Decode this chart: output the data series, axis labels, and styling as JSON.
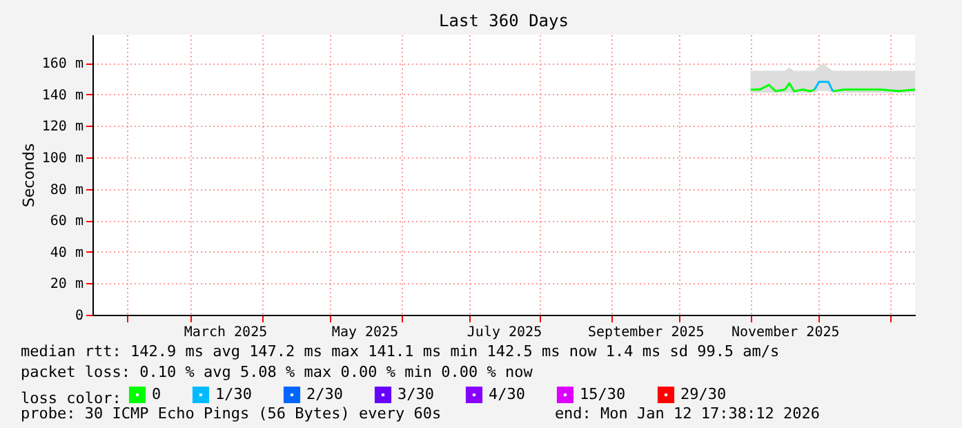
{
  "chart_data": {
    "type": "line",
    "title": "Last 360 Days",
    "ylabel": "Seconds",
    "legend_title": "loss color:",
    "legend": "bottom",
    "grid": true,
    "x": [
      "2025-11-01",
      "2025-11-05",
      "2025-11-09",
      "2025-11-12",
      "2025-11-16",
      "2025-11-18",
      "2025-11-20",
      "2025-11-24",
      "2025-11-27",
      "2025-11-29",
      "2025-12-01",
      "2025-12-03",
      "2025-12-05",
      "2025-12-07",
      "2025-12-12",
      "2025-12-20",
      "2025-12-28",
      "2026-01-05",
      "2026-01-12"
    ],
    "series": [
      {
        "name": "0",
        "color": "#00ff00",
        "values": [
          143,
          143,
          146,
          142,
          143,
          147,
          142,
          143,
          142,
          143,
          null,
          null,
          null,
          142,
          143,
          143,
          143,
          142,
          143
        ],
        "lower": [
          141,
          141,
          141,
          141,
          141,
          141,
          141,
          141,
          141,
          141,
          142,
          142,
          142,
          141,
          141,
          141,
          141,
          141,
          141
        ],
        "upper": [
          155,
          155,
          155,
          155,
          155,
          157,
          155,
          155,
          155,
          155,
          158,
          160,
          157,
          155,
          155,
          155,
          155,
          155,
          155
        ]
      },
      {
        "name": "1/30",
        "color": "#00bbff",
        "values": [
          null,
          null,
          null,
          null,
          null,
          null,
          null,
          null,
          null,
          143,
          148,
          148,
          148,
          142,
          null,
          null,
          null,
          null,
          null
        ]
      },
      {
        "name": "2/30",
        "color": "#0066ff",
        "values": [
          null,
          null,
          null,
          null,
          null,
          null,
          null,
          null,
          null,
          null,
          null,
          null,
          null,
          null,
          null,
          null,
          null,
          null,
          null
        ]
      },
      {
        "name": "3/30",
        "color": "#6600ff",
        "values": [
          null,
          null,
          null,
          null,
          null,
          null,
          null,
          null,
          null,
          null,
          null,
          null,
          null,
          null,
          null,
          null,
          null,
          null,
          null
        ]
      },
      {
        "name": "4/30",
        "color": "#8800ff",
        "values": [
          null,
          null,
          null,
          null,
          null,
          null,
          null,
          null,
          null,
          null,
          null,
          null,
          null,
          null,
          null,
          null,
          null,
          null,
          null
        ]
      },
      {
        "name": "15/30",
        "color": "#dd00ff",
        "values": [
          null,
          null,
          null,
          null,
          null,
          null,
          null,
          null,
          null,
          null,
          null,
          null,
          null,
          null,
          null,
          null,
          null,
          null,
          null
        ]
      },
      {
        "name": "29/30",
        "color": "#ff0000",
        "values": [
          null,
          null,
          null,
          null,
          null,
          null,
          null,
          null,
          null,
          null,
          null,
          null,
          null,
          null,
          null,
          null,
          null,
          null,
          null
        ]
      }
    ],
    "xlim": [
      "2025-01-17",
      "2026-01-12"
    ],
    "xticks": [
      {
        "value": "2025-02-01",
        "label": null
      },
      {
        "value": "2025-03-01",
        "label": null
      },
      {
        "value": "2025-03-16",
        "label": "March 2025"
      },
      {
        "value": "2025-04-01",
        "label": null
      },
      {
        "value": "2025-05-01",
        "label": null
      },
      {
        "value": "2025-05-16",
        "label": "May 2025"
      },
      {
        "value": "2025-06-01",
        "label": null
      },
      {
        "value": "2025-07-01",
        "label": null
      },
      {
        "value": "2025-07-16",
        "label": "July 2025"
      },
      {
        "value": "2025-08-01",
        "label": null
      },
      {
        "value": "2025-09-01",
        "label": null
      },
      {
        "value": "2025-09-16",
        "label": "September 2025"
      },
      {
        "value": "2025-10-01",
        "label": null
      },
      {
        "value": "2025-11-01",
        "label": null
      },
      {
        "value": "2025-11-16",
        "label": "November 2025"
      },
      {
        "value": "2025-12-01",
        "label": null
      },
      {
        "value": "2026-01-01",
        "label": null
      }
    ],
    "ylim": [
      0,
      178
    ],
    "yticks": [
      {
        "value": 0,
        "label": "0"
      },
      {
        "value": 20,
        "label": "20 m"
      },
      {
        "value": 40,
        "label": "40 m"
      },
      {
        "value": 60,
        "label": "60 m"
      },
      {
        "value": 80,
        "label": "80 m"
      },
      {
        "value": 100,
        "label": "100 m"
      },
      {
        "value": 120,
        "label": "120 m"
      },
      {
        "value": 140,
        "label": "140 m"
      },
      {
        "value": 160,
        "label": "160 m"
      }
    ],
    "annotations": [
      "median rtt:  142.9 ms avg  147.2 ms max  141.1 ms min  142.5 ms now  1.4 ms sd  99.5   am/s",
      "packet loss: 0.10 % avg  5.08 % max  0.00 % min  0.00 % now",
      "probe:       30 ICMP Echo Pings (56 Bytes) every 60s",
      "end: Mon Jan 12 17:38:12 2026"
    ]
  }
}
